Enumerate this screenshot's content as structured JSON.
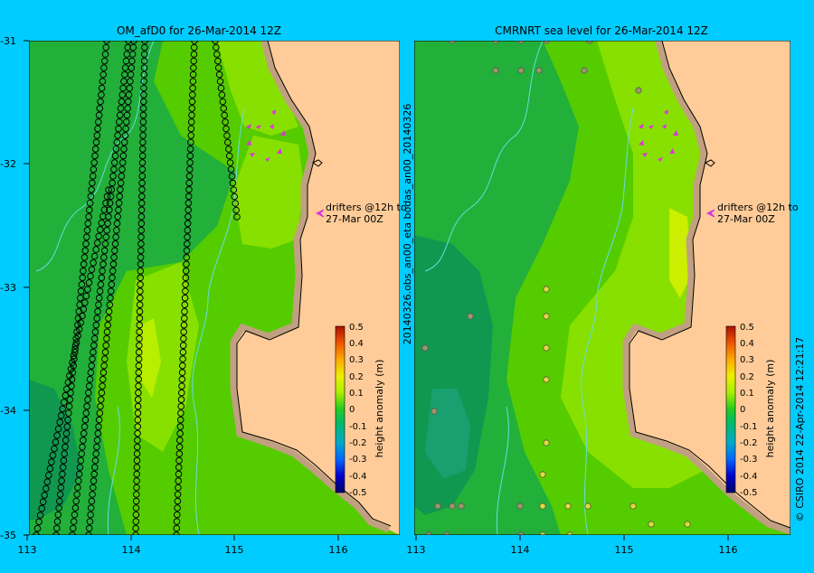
{
  "left_panel": {
    "title": "OM_afD0 for 26-Mar-2014 12Z",
    "lat_ticks": [
      "-31",
      "-32",
      "-33",
      "-34",
      "-35"
    ],
    "lon_ticks": [
      "113",
      "114",
      "115",
      "116"
    ],
    "drifter_note_line1": "drifters @12h to",
    "drifter_note_line2": "27-Mar 00Z",
    "colorbar": {
      "label": "height anomaly (m)",
      "ticks": [
        "0.5",
        "0.4",
        "0.3",
        "0.2",
        "0.1",
        "0",
        "-0.1",
        "-0.2",
        "-0.3",
        "-0.4",
        "-0.5"
      ]
    }
  },
  "right_panel": {
    "title": "CMRNRT sea level  for 26-Mar-2014 12Z",
    "lon_ticks": [
      "113",
      "114",
      "115",
      "116"
    ],
    "drifter_note_line1": "drifters @12h to",
    "drifter_note_line2": "27-Mar 00Z",
    "colorbar": {
      "label": "height anomaly (m)",
      "ticks": [
        "0.5",
        "0.4",
        "0.3",
        "0.2",
        "0.1",
        "0",
        "-0.1",
        "-0.2",
        "-0.3",
        "-0.4",
        "-0.5"
      ]
    }
  },
  "side_label": "20140326.obs_an00_eta    bodas_an00_20140326",
  "credit_label": "© CSIRO 2014    22-Apr-2014 12:21:17",
  "colors": {
    "background": "#00ccff",
    "land": "#ffcc99",
    "shelf": "#c0a080",
    "sea_light": "#88e000",
    "sea_mid": "#55cc00",
    "sea_dark": "#22b03a",
    "sea_deep": "#109850",
    "drifter": "#dd33dd"
  }
}
